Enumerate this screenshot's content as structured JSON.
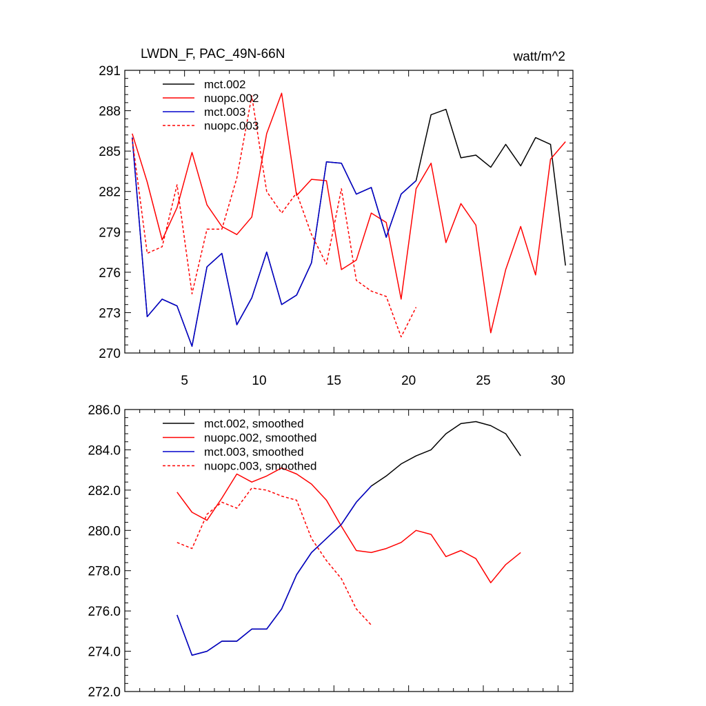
{
  "chart_data": [
    {
      "type": "line",
      "title": "LWDN_F, PAC_49N-66N",
      "units": "watt/m^2",
      "xlim": [
        1,
        31
      ],
      "ylim": [
        270,
        291
      ],
      "xticks": [
        5,
        10,
        15,
        20,
        25,
        30
      ],
      "xtick_labels": [
        "5",
        "10",
        "15",
        "20",
        "25",
        "30"
      ],
      "yticks": [
        270,
        273,
        276,
        279,
        282,
        285,
        288,
        291
      ],
      "ytick_labels": [
        "270",
        "273",
        "276",
        "279",
        "282",
        "285",
        "288",
        "291"
      ],
      "legend_position": "top-left",
      "series": [
        {
          "name": "mct.002",
          "color": "#000000",
          "dash": "solid",
          "x": [
            1.5,
            2.5,
            3.5,
            4.5,
            5.5,
            6.5,
            7.5,
            8.5,
            9.5,
            10.5,
            11.5,
            12.5,
            13.5,
            14.5,
            15.5,
            16.5,
            17.5,
            18.5,
            19.5,
            20.5,
            21.5,
            22.5,
            23.5,
            24.5,
            25.5,
            26.5,
            27.5,
            28.5,
            29.5,
            30.5
          ],
          "values": [
            286.0,
            272.7,
            274.0,
            273.5,
            270.5,
            276.4,
            277.4,
            272.1,
            274.1,
            277.5,
            273.6,
            274.3,
            276.7,
            284.2,
            284.1,
            281.8,
            282.3,
            278.6,
            281.8,
            282.8,
            287.7,
            288.1,
            284.5,
            284.7,
            283.8,
            285.5,
            283.9,
            286.0,
            285.5,
            276.5
          ]
        },
        {
          "name": "nuopc.002",
          "color": "#ff0000",
          "dash": "solid",
          "x": [
            1.5,
            2.5,
            3.5,
            4.5,
            5.5,
            6.5,
            7.5,
            8.5,
            9.5,
            10.5,
            11.5,
            12.5,
            13.5,
            14.5,
            15.5,
            16.5,
            17.5,
            18.5,
            19.5,
            20.5,
            21.5,
            22.5,
            23.5,
            24.5,
            25.5,
            26.5,
            27.5,
            28.5,
            29.5,
            30.5
          ],
          "values": [
            286.3,
            282.7,
            278.4,
            280.8,
            284.9,
            281.0,
            279.4,
            278.8,
            280.1,
            286.3,
            289.3,
            281.7,
            282.9,
            282.8,
            276.2,
            276.9,
            280.4,
            279.7,
            274.0,
            282.2,
            284.1,
            278.2,
            281.1,
            279.5,
            271.5,
            276.2,
            279.4,
            275.8,
            284.4,
            285.7
          ]
        },
        {
          "name": "mct.003",
          "color": "#0000cc",
          "dash": "solid",
          "x": [
            1.5,
            2.5,
            3.5,
            4.5,
            5.5,
            6.5,
            7.5,
            8.5,
            9.5,
            10.5,
            11.5,
            12.5,
            13.5,
            14.5,
            15.5,
            16.5,
            17.5,
            18.5,
            19.5,
            20.5
          ],
          "values": [
            286.0,
            272.7,
            274.0,
            273.5,
            270.5,
            276.4,
            277.4,
            272.1,
            274.1,
            277.5,
            273.6,
            274.3,
            276.7,
            284.2,
            284.1,
            281.8,
            282.3,
            278.6,
            281.8,
            282.8
          ]
        },
        {
          "name": "nuopc.003",
          "color": "#ff0000",
          "dash": "dashed",
          "x": [
            1.5,
            2.5,
            3.5,
            4.5,
            5.5,
            6.5,
            7.5,
            8.5,
            9.5,
            10.5,
            11.5,
            12.5,
            13.5,
            14.5,
            15.5,
            16.5,
            17.5,
            18.5,
            19.5,
            20.5
          ],
          "values": [
            285.9,
            277.4,
            277.9,
            282.5,
            274.4,
            279.2,
            279.2,
            283.0,
            289.1,
            282.0,
            280.4,
            281.9,
            278.8,
            276.6,
            282.2,
            275.4,
            274.6,
            274.2,
            271.2,
            273.4
          ]
        }
      ]
    },
    {
      "type": "line",
      "title": "",
      "xlim": [
        1,
        31
      ],
      "ylim": [
        272,
        286
      ],
      "xticks": [
        5,
        10,
        15,
        20,
        25,
        30
      ],
      "xtick_labels": [],
      "yticks": [
        272,
        274,
        276,
        278,
        280,
        282,
        284,
        286
      ],
      "ytick_labels": [
        "272.0",
        "274.0",
        "276.0",
        "278.0",
        "280.0",
        "282.0",
        "284.0",
        "286.0"
      ],
      "legend_position": "top-left",
      "series": [
        {
          "name": "mct.002, smoothed",
          "color": "#000000",
          "dash": "solid",
          "x": [
            4.5,
            5.5,
            6.5,
            7.5,
            8.5,
            9.5,
            10.5,
            11.5,
            12.5,
            13.5,
            14.5,
            15.5,
            16.5,
            17.5,
            18.5,
            19.5,
            20.5,
            21.5,
            22.5,
            23.5,
            24.5,
            25.5,
            26.5,
            27.5
          ],
          "values": [
            275.8,
            273.8,
            274.0,
            274.5,
            274.5,
            275.1,
            275.1,
            276.1,
            277.8,
            278.9,
            279.6,
            280.3,
            281.4,
            282.2,
            282.7,
            283.3,
            283.7,
            284.0,
            284.8,
            285.3,
            285.4,
            285.2,
            284.8,
            283.7
          ]
        },
        {
          "name": "nuopc.002, smoothed",
          "color": "#ff0000",
          "dash": "solid",
          "x": [
            4.5,
            5.5,
            6.5,
            7.5,
            8.5,
            9.5,
            10.5,
            11.5,
            12.5,
            13.5,
            14.5,
            15.5,
            16.5,
            17.5,
            18.5,
            19.5,
            20.5,
            21.5,
            22.5,
            23.5,
            24.5,
            25.5,
            26.5,
            27.5
          ],
          "values": [
            281.9,
            280.9,
            280.5,
            281.6,
            282.8,
            282.4,
            282.7,
            283.1,
            282.8,
            282.3,
            281.5,
            280.2,
            279.0,
            278.9,
            279.1,
            279.4,
            280.0,
            279.8,
            278.7,
            279.0,
            278.6,
            277.4,
            278.3,
            278.9
          ]
        },
        {
          "name": "mct.003, smoothed",
          "color": "#0000cc",
          "dash": "solid",
          "x": [
            4.5,
            5.5,
            6.5,
            7.5,
            8.5,
            9.5,
            10.5,
            11.5,
            12.5,
            13.5,
            14.5,
            15.5,
            16.5,
            17.5
          ],
          "values": [
            275.8,
            273.8,
            274.0,
            274.5,
            274.5,
            275.1,
            275.1,
            276.1,
            277.8,
            278.9,
            279.6,
            280.3,
            281.4,
            282.2
          ]
        },
        {
          "name": "nuopc.003, smoothed",
          "color": "#ff0000",
          "dash": "dashed",
          "x": [
            4.5,
            5.5,
            6.5,
            7.5,
            8.5,
            9.5,
            10.5,
            11.5,
            12.5,
            13.5,
            14.5,
            15.5,
            16.5,
            17.5
          ],
          "values": [
            279.4,
            279.1,
            280.8,
            281.4,
            281.1,
            282.1,
            282.0,
            281.7,
            281.5,
            279.6,
            278.5,
            277.6,
            276.1,
            275.3
          ]
        }
      ]
    }
  ]
}
